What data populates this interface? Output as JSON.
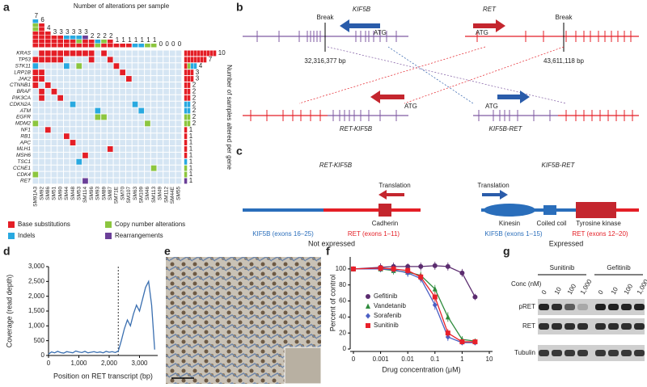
{
  "panel_labels": [
    "a",
    "b",
    "c",
    "d",
    "e",
    "f",
    "g"
  ],
  "oncoprint": {
    "top_title": "Number of alterations per sample",
    "right_title": "Number of samples altered per gene",
    "genes": [
      "KRAS",
      "TP53",
      "STK11",
      "LRP1B",
      "JAK2",
      "CTNNB1",
      "BRAF",
      "PIK3CA",
      "CDKN2A",
      "ATM",
      "EGFR",
      "MDM2",
      "NF1",
      "RB1",
      "APC",
      "MLH1",
      "MSH6",
      "TSC1",
      "CCNE1",
      "CDK4",
      "RET"
    ],
    "gene_counts": [
      10,
      7,
      4,
      3,
      3,
      2,
      2,
      2,
      2,
      2,
      2,
      2,
      1,
      1,
      1,
      1,
      1,
      1,
      1,
      1,
      1
    ],
    "samples": [
      "SM91A3",
      "SM92",
      "SM86",
      "SM51",
      "SM90",
      "SM44",
      "SM48",
      "SM53",
      "SM114",
      "SM96",
      "SM93",
      "SM89",
      "SM87",
      "SM71E",
      "SM70",
      "SM107",
      "SM63",
      "SM109",
      "SM46",
      "SM113",
      "SM49",
      "SM112",
      "SM44E",
      "SM55"
    ],
    "sample_counts": [
      7,
      6,
      4,
      3,
      3,
      3,
      3,
      3,
      3,
      2,
      2,
      2,
      2,
      1,
      1,
      1,
      1,
      1,
      1,
      1,
      0,
      0,
      0,
      0
    ],
    "types": [
      {
        "name": "Base substitutions",
        "color": "#e41e26"
      },
      {
        "name": "Copy number alterations",
        "color": "#8cc63f"
      },
      {
        "name": "Indels",
        "color": "#29a9e0"
      },
      {
        "name": "Rearrangements",
        "color": "#6b3f98"
      }
    ],
    "background": "#d5e5f3",
    "alterations": [
      [
        1,
        0,
        0
      ],
      [
        2,
        0,
        2
      ],
      [
        3,
        0,
        0
      ],
      [
        4,
        0,
        0
      ],
      [
        5,
        0,
        0
      ],
      [
        11,
        0,
        1
      ],
      [
        19,
        0,
        1
      ],
      [
        0,
        1,
        0
      ],
      [
        1,
        1,
        0
      ],
      [
        3,
        1,
        0
      ],
      [
        4,
        1,
        0
      ],
      [
        6,
        1,
        0
      ],
      [
        7,
        1,
        0
      ],
      [
        0,
        2,
        0
      ],
      [
        1,
        2,
        0
      ],
      [
        5,
        2,
        0
      ],
      [
        12,
        2,
        0
      ],
      [
        0,
        3,
        0
      ],
      [
        1,
        3,
        0
      ],
      [
        6,
        3,
        0
      ],
      [
        0,
        4,
        0
      ],
      [
        1,
        4,
        0
      ],
      [
        7,
        4,
        0
      ],
      [
        0,
        5,
        0
      ],
      [
        2,
        5,
        2
      ],
      [
        13,
        5,
        0
      ],
      [
        0,
        6,
        0
      ],
      [
        8,
        6,
        2
      ],
      [
        14,
        6,
        0
      ],
      [
        0,
        7,
        0
      ],
      [
        2,
        7,
        1
      ],
      [
        17,
        7,
        2
      ],
      [
        0,
        8,
        0
      ],
      [
        20,
        8,
        3
      ],
      [
        16,
        8,
        0
      ],
      [
        0,
        9,
        0
      ],
      [
        1,
        9,
        0
      ],
      [
        9,
        10,
        2
      ],
      [
        10,
        10,
        1
      ],
      [
        0,
        11,
        0
      ],
      [
        10,
        11,
        1
      ],
      [
        1,
        12,
        0
      ],
      [
        15,
        12,
        0
      ],
      [
        2,
        13,
        0
      ],
      [
        3,
        14,
        0
      ],
      [
        4,
        15,
        0
      ],
      [
        8,
        16,
        2
      ],
      [
        9,
        17,
        2
      ],
      [
        11,
        18,
        1
      ],
      [
        18,
        19,
        1
      ]
    ]
  },
  "fusion_diagram": {
    "kif5b_gene": "KIF5B",
    "ret_gene": "RET",
    "break_label": "Break",
    "atg_label": "ATG",
    "kif5b_break": "32,316,377 bp",
    "ret_break": "43,611,118 bp",
    "fusion_left": "RET-KIF5B",
    "fusion_right": "KIF5B-RET"
  },
  "protein_diagram": {
    "left": {
      "name": "RET-KIF5B",
      "translation": "Translation",
      "domain": "Cadherin",
      "part1": "KIF5B (exons 16–25)",
      "part2": "RET (exons 1–11)",
      "status": "Not expressed"
    },
    "right": {
      "name": "KIF5B-RET",
      "translation": "Translation",
      "domains": [
        "Kinesin",
        "Coiled coil",
        "Tyrosine kinase"
      ],
      "part1": "KIF5B (exons 1–15)",
      "part2": "RET (exons 12–20)",
      "status": "Expressed"
    }
  },
  "coverage_chart": {
    "type": "line",
    "xlabel": "Position on RET transcript (bp)",
    "ylabel": "Coverage (read depth)",
    "x": [
      0,
      100,
      200,
      300,
      400,
      500,
      600,
      700,
      800,
      900,
      1000,
      1100,
      1200,
      1300,
      1400,
      1500,
      1600,
      1700,
      1800,
      1900,
      2000,
      2100,
      2200,
      2300,
      2400,
      2500,
      2600,
      2700,
      2800,
      2900,
      3000,
      3100,
      3200,
      3300,
      3400,
      3500
    ],
    "values": [
      50,
      120,
      90,
      140,
      100,
      80,
      130,
      110,
      90,
      150,
      120,
      100,
      140,
      90,
      110,
      130,
      100,
      120,
      90,
      140,
      110,
      130,
      100,
      150,
      500,
      900,
      1200,
      1000,
      1400,
      1700,
      1500,
      1900,
      2300,
      2500,
      1700,
      200
    ],
    "color": "#3a6fb0",
    "breakpoint_x": 2300,
    "xlim": [
      0,
      3600
    ],
    "ylim": [
      0,
      3000
    ],
    "xticks": [
      0,
      {
        "value": 1000,
        "label": "1,000"
      },
      {
        "value": 2000,
        "label": "2,000"
      },
      {
        "value": 3000,
        "label": "3,000"
      }
    ],
    "yticks": [
      0,
      500,
      {
        "value": 1000,
        "label": "1,000"
      },
      {
        "value": 1500,
        "label": "1,500"
      },
      {
        "value": 2000,
        "label": "2,000"
      },
      {
        "value": 2500,
        "label": "2,500"
      },
      {
        "value": 3000,
        "label": "3,000"
      }
    ]
  },
  "dose_response": {
    "type": "line",
    "xlabel": "Drug concentration (μM)",
    "ylabel": "Percent of control",
    "xscale": "log",
    "x": [
      0,
      0.001,
      0.003,
      0.01,
      0.03,
      0.1,
      0.3,
      1,
      3
    ],
    "xlim": [
      0,
      10
    ],
    "ylim": [
      0,
      115
    ],
    "xticks": [
      0,
      0.001,
      0.01,
      0.1,
      1,
      10
    ],
    "yticks": [
      0,
      20,
      40,
      60,
      80,
      100
    ],
    "legend": "center-left",
    "series": [
      {
        "name": "Gefitinib",
        "color": "#5b2c6f",
        "marker": "circle",
        "values": [
          100,
          102,
          103,
          103,
          103,
          104,
          103,
          95,
          65
        ],
        "errors": [
          3,
          5,
          5,
          4,
          5,
          5,
          5,
          5,
          4
        ]
      },
      {
        "name": "Vandetanib",
        "color": "#2e8b3c",
        "marker": "triangle",
        "values": [
          100,
          100,
          98,
          96,
          92,
          75,
          40,
          12,
          10
        ],
        "errors": [
          3,
          4,
          5,
          5,
          5,
          5,
          6,
          4,
          3
        ]
      },
      {
        "name": "Sorafenib",
        "color": "#4b5fc4",
        "marker": "diamond",
        "values": [
          100,
          100,
          99,
          95,
          88,
          55,
          15,
          8,
          8
        ],
        "errors": [
          3,
          4,
          4,
          5,
          5,
          6,
          5,
          3,
          3
        ]
      },
      {
        "name": "Sunitinib",
        "color": "#e8202a",
        "marker": "square",
        "values": [
          100,
          101,
          100,
          98,
          90,
          65,
          20,
          9,
          9
        ],
        "errors": [
          3,
          4,
          4,
          4,
          5,
          6,
          5,
          3,
          3
        ]
      }
    ]
  },
  "western_blot": {
    "drugs": [
      "Sunitinib",
      "Gefitinib"
    ],
    "conc_label": "Conc (nM)",
    "concentrations": [
      "0",
      "10",
      "100",
      "1,000"
    ],
    "rows": [
      {
        "name": "pRET",
        "intensities": [
          0.9,
          0.85,
          0.6,
          0.2,
          0.92,
          0.92,
          0.9,
          0.9
        ]
      },
      {
        "name": "RET",
        "intensities": [
          0.85,
          0.85,
          0.85,
          0.85,
          0.85,
          0.85,
          0.85,
          0.85
        ]
      },
      {
        "name": "Tubulin",
        "intensities": [
          0.8,
          0.8,
          0.8,
          0.8,
          0.8,
          0.8,
          0.8,
          0.8
        ]
      }
    ]
  }
}
